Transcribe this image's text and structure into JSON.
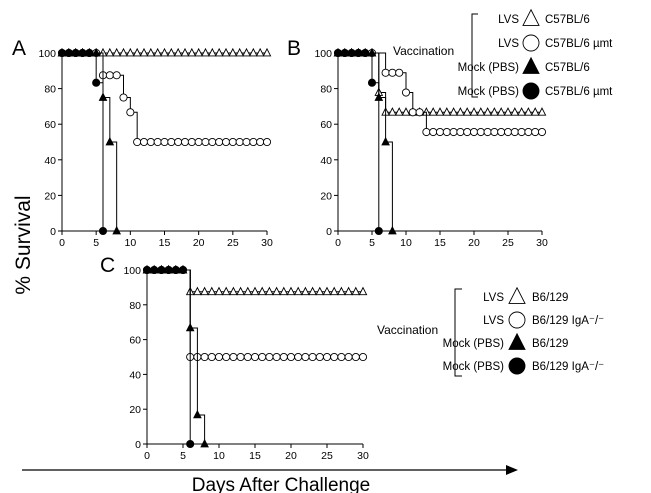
{
  "figure": {
    "ylabel": "% Survival",
    "xlabel": "Days After Challenge"
  },
  "legend_top": {
    "group_label": "Vaccination",
    "entries": [
      {
        "treatment": "LVS",
        "strain": "C57BL/6",
        "marker": "open-triangle"
      },
      {
        "treatment": "LVS",
        "strain": "C57BL/6 µmt",
        "marker": "open-circle"
      },
      {
        "treatment": "Mock (PBS)",
        "strain": "C57BL/6",
        "marker": "filled-triangle"
      },
      {
        "treatment": "Mock (PBS)",
        "strain": "C57BL/6 µmt",
        "marker": "filled-circle"
      }
    ]
  },
  "legend_bottom": {
    "group_label": "Vaccination",
    "entries": [
      {
        "treatment": "LVS",
        "strain": "B6/129",
        "marker": "open-triangle"
      },
      {
        "treatment": "LVS",
        "strain": "B6/129 IgA⁻/⁻",
        "marker": "open-circle"
      },
      {
        "treatment": "Mock (PBS)",
        "strain": "B6/129",
        "marker": "filled-triangle"
      },
      {
        "treatment": "Mock (PBS)",
        "strain": "B6/129 IgA⁻/⁻",
        "marker": "filled-circle"
      }
    ]
  },
  "chart_data": [
    {
      "panel": "A",
      "type": "line",
      "step": true,
      "xlim": [
        0,
        30
      ],
      "ylim": [
        0,
        100
      ],
      "xticks": [
        0,
        5,
        10,
        15,
        20,
        25,
        30
      ],
      "yticks": [
        0,
        20,
        40,
        60,
        80,
        100
      ],
      "series": [
        {
          "marker": "open-triangle",
          "points": [
            [
              0,
              100
            ],
            [
              1,
              100
            ],
            [
              2,
              100
            ],
            [
              3,
              100
            ],
            [
              4,
              100
            ],
            [
              5,
              100
            ],
            [
              6,
              100
            ],
            [
              7,
              100
            ],
            [
              8,
              100
            ],
            [
              9,
              100
            ],
            [
              10,
              100
            ],
            [
              11,
              100
            ],
            [
              12,
              100
            ],
            [
              13,
              100
            ],
            [
              14,
              100
            ],
            [
              15,
              100
            ],
            [
              16,
              100
            ],
            [
              17,
              100
            ],
            [
              18,
              100
            ],
            [
              19,
              100
            ],
            [
              20,
              100
            ],
            [
              21,
              100
            ],
            [
              22,
              100
            ],
            [
              23,
              100
            ],
            [
              24,
              100
            ],
            [
              25,
              100
            ],
            [
              26,
              100
            ],
            [
              27,
              100
            ],
            [
              28,
              100
            ],
            [
              29,
              100
            ],
            [
              30,
              100
            ]
          ]
        },
        {
          "marker": "open-circle",
          "points": [
            [
              0,
              100
            ],
            [
              1,
              100
            ],
            [
              2,
              100
            ],
            [
              3,
              100
            ],
            [
              4,
              100
            ],
            [
              5,
              100
            ],
            [
              6,
              87.5
            ],
            [
              7,
              87.5
            ],
            [
              8,
              87.5
            ],
            [
              9,
              75
            ],
            [
              10,
              66.7
            ],
            [
              11,
              50
            ],
            [
              12,
              50
            ],
            [
              13,
              50
            ],
            [
              14,
              50
            ],
            [
              15,
              50
            ],
            [
              16,
              50
            ],
            [
              17,
              50
            ],
            [
              18,
              50
            ],
            [
              19,
              50
            ],
            [
              20,
              50
            ],
            [
              21,
              50
            ],
            [
              22,
              50
            ],
            [
              23,
              50
            ],
            [
              24,
              50
            ],
            [
              25,
              50
            ],
            [
              26,
              50
            ],
            [
              27,
              50
            ],
            [
              28,
              50
            ],
            [
              29,
              50
            ],
            [
              30,
              50
            ]
          ]
        },
        {
          "marker": "filled-triangle",
          "points": [
            [
              0,
              100
            ],
            [
              1,
              100
            ],
            [
              2,
              100
            ],
            [
              3,
              100
            ],
            [
              4,
              100
            ],
            [
              5,
              100
            ],
            [
              6,
              75
            ],
            [
              7,
              50
            ],
            [
              8,
              0
            ]
          ]
        },
        {
          "marker": "filled-circle",
          "points": [
            [
              0,
              100
            ],
            [
              1,
              100
            ],
            [
              2,
              100
            ],
            [
              3,
              100
            ],
            [
              4,
              100
            ],
            [
              5,
              83.3
            ],
            [
              6,
              0
            ]
          ]
        }
      ]
    },
    {
      "panel": "B",
      "type": "line",
      "step": true,
      "xlim": [
        0,
        30
      ],
      "ylim": [
        0,
        100
      ],
      "xticks": [
        0,
        5,
        10,
        15,
        20,
        25,
        30
      ],
      "yticks": [
        0,
        20,
        40,
        60,
        80,
        100
      ],
      "series": [
        {
          "marker": "open-triangle",
          "points": [
            [
              0,
              100
            ],
            [
              1,
              100
            ],
            [
              2,
              100
            ],
            [
              3,
              100
            ],
            [
              4,
              100
            ],
            [
              5,
              100
            ],
            [
              6,
              77.8
            ],
            [
              7,
              66.7
            ],
            [
              8,
              66.7
            ],
            [
              9,
              66.7
            ],
            [
              10,
              66.7
            ],
            [
              11,
              66.7
            ],
            [
              12,
              66.7
            ],
            [
              13,
              66.7
            ],
            [
              14,
              66.7
            ],
            [
              15,
              66.7
            ],
            [
              16,
              66.7
            ],
            [
              17,
              66.7
            ],
            [
              18,
              66.7
            ],
            [
              19,
              66.7
            ],
            [
              20,
              66.7
            ],
            [
              21,
              66.7
            ],
            [
              22,
              66.7
            ],
            [
              23,
              66.7
            ],
            [
              24,
              66.7
            ],
            [
              25,
              66.7
            ],
            [
              26,
              66.7
            ],
            [
              27,
              66.7
            ],
            [
              28,
              66.7
            ],
            [
              29,
              66.7
            ],
            [
              30,
              66.7
            ]
          ]
        },
        {
          "marker": "open-circle",
          "points": [
            [
              0,
              100
            ],
            [
              1,
              100
            ],
            [
              2,
              100
            ],
            [
              3,
              100
            ],
            [
              4,
              100
            ],
            [
              5,
              100
            ],
            [
              7,
              88.9
            ],
            [
              8,
              88.9
            ],
            [
              9,
              88.9
            ],
            [
              10,
              77.8
            ],
            [
              11,
              66.7
            ],
            [
              12,
              66.7
            ],
            [
              13,
              55.6
            ],
            [
              14,
              55.6
            ],
            [
              15,
              55.6
            ],
            [
              16,
              55.6
            ],
            [
              17,
              55.6
            ],
            [
              18,
              55.6
            ],
            [
              19,
              55.6
            ],
            [
              20,
              55.6
            ],
            [
              21,
              55.6
            ],
            [
              22,
              55.6
            ],
            [
              23,
              55.6
            ],
            [
              24,
              55.6
            ],
            [
              25,
              55.6
            ],
            [
              26,
              55.6
            ],
            [
              27,
              55.6
            ],
            [
              28,
              55.6
            ],
            [
              29,
              55.6
            ],
            [
              30,
              55.6
            ]
          ]
        },
        {
          "marker": "filled-triangle",
          "points": [
            [
              0,
              100
            ],
            [
              1,
              100
            ],
            [
              2,
              100
            ],
            [
              3,
              100
            ],
            [
              4,
              100
            ],
            [
              5,
              100
            ],
            [
              6,
              75
            ],
            [
              7,
              50
            ],
            [
              8,
              0
            ]
          ]
        },
        {
          "marker": "filled-circle",
          "points": [
            [
              0,
              100
            ],
            [
              1,
              100
            ],
            [
              2,
              100
            ],
            [
              3,
              100
            ],
            [
              4,
              100
            ],
            [
              5,
              83.3
            ],
            [
              6,
              0
            ]
          ]
        }
      ]
    },
    {
      "panel": "C",
      "type": "line",
      "step": true,
      "xlim": [
        0,
        30
      ],
      "ylim": [
        0,
        100
      ],
      "xticks": [
        0,
        5,
        10,
        15,
        20,
        25,
        30
      ],
      "yticks": [
        0,
        20,
        40,
        60,
        80,
        100
      ],
      "series": [
        {
          "marker": "open-triangle",
          "points": [
            [
              0,
              100
            ],
            [
              1,
              100
            ],
            [
              2,
              100
            ],
            [
              3,
              100
            ],
            [
              4,
              100
            ],
            [
              5,
              100
            ],
            [
              6,
              87.5
            ],
            [
              7,
              87.5
            ],
            [
              8,
              87.5
            ],
            [
              9,
              87.5
            ],
            [
              10,
              87.5
            ],
            [
              11,
              87.5
            ],
            [
              12,
              87.5
            ],
            [
              13,
              87.5
            ],
            [
              14,
              87.5
            ],
            [
              15,
              87.5
            ],
            [
              16,
              87.5
            ],
            [
              17,
              87.5
            ],
            [
              18,
              87.5
            ],
            [
              19,
              87.5
            ],
            [
              20,
              87.5
            ],
            [
              21,
              87.5
            ],
            [
              22,
              87.5
            ],
            [
              23,
              87.5
            ],
            [
              24,
              87.5
            ],
            [
              25,
              87.5
            ],
            [
              26,
              87.5
            ],
            [
              27,
              87.5
            ],
            [
              28,
              87.5
            ],
            [
              29,
              87.5
            ],
            [
              30,
              87.5
            ]
          ]
        },
        {
          "marker": "open-circle",
          "points": [
            [
              0,
              100
            ],
            [
              1,
              100
            ],
            [
              2,
              100
            ],
            [
              3,
              100
            ],
            [
              4,
              100
            ],
            [
              5,
              100
            ],
            [
              6,
              50
            ],
            [
              7,
              50
            ],
            [
              8,
              50
            ],
            [
              9,
              50
            ],
            [
              10,
              50
            ],
            [
              11,
              50
            ],
            [
              12,
              50
            ],
            [
              13,
              50
            ],
            [
              14,
              50
            ],
            [
              15,
              50
            ],
            [
              16,
              50
            ],
            [
              17,
              50
            ],
            [
              18,
              50
            ],
            [
              19,
              50
            ],
            [
              20,
              50
            ],
            [
              21,
              50
            ],
            [
              22,
              50
            ],
            [
              23,
              50
            ],
            [
              24,
              50
            ],
            [
              25,
              50
            ],
            [
              26,
              50
            ],
            [
              27,
              50
            ],
            [
              28,
              50
            ],
            [
              29,
              50
            ],
            [
              30,
              50
            ]
          ]
        },
        {
          "marker": "filled-triangle",
          "points": [
            [
              0,
              100
            ],
            [
              1,
              100
            ],
            [
              2,
              100
            ],
            [
              3,
              100
            ],
            [
              4,
              100
            ],
            [
              5,
              100
            ],
            [
              6,
              66.7
            ],
            [
              7,
              16.7
            ],
            [
              8,
              0
            ]
          ]
        },
        {
          "marker": "filled-circle",
          "points": [
            [
              0,
              100
            ],
            [
              1,
              100
            ],
            [
              2,
              100
            ],
            [
              3,
              100
            ],
            [
              4,
              100
            ],
            [
              5,
              100
            ],
            [
              6,
              0
            ]
          ]
        }
      ]
    }
  ]
}
